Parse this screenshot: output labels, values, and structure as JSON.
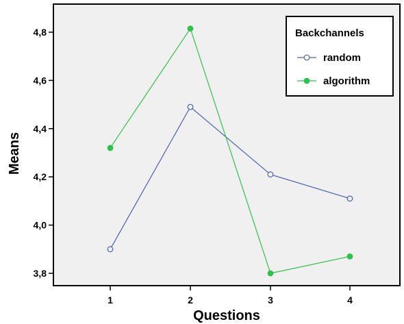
{
  "chart_data": {
    "type": "line",
    "xlabel": "Questions",
    "ylabel": "Means",
    "categories": [
      "1",
      "2",
      "3",
      "4"
    ],
    "ylim": [
      3.75,
      4.95
    ],
    "yticks": [
      "3,8",
      "4,0",
      "4,2",
      "4,4",
      "4,6",
      "4,8"
    ],
    "ytick_values": [
      3.8,
      4.0,
      4.2,
      4.4,
      4.6,
      4.8
    ],
    "grid": false,
    "legend": {
      "title": "Backchannels",
      "placement": "top-right"
    },
    "series": [
      {
        "name": "random",
        "values": [
          3.9,
          4.49,
          4.21,
          4.11
        ],
        "color": "#4a5fb0",
        "marker": "open-circle"
      },
      {
        "name": "algorithm",
        "values": [
          4.32,
          4.815,
          3.8,
          3.87
        ],
        "color": "#2fc24a",
        "marker": "filled-circle"
      }
    ]
  },
  "colors": {
    "plot_background": "#f0f0f0",
    "page_background": "#ffffff"
  }
}
